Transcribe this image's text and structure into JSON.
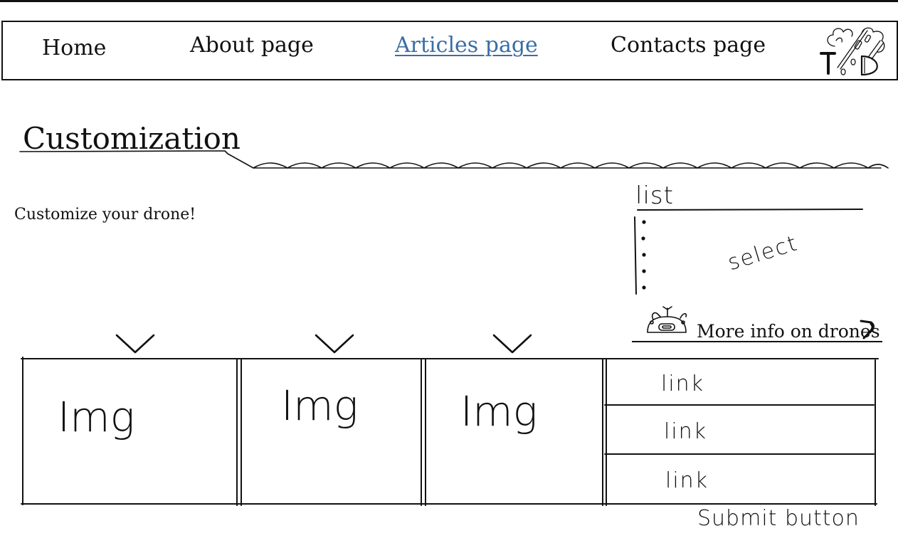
{
  "nav": {
    "items": [
      {
        "label": "Home"
      },
      {
        "label": "About page"
      },
      {
        "label": "Articles page",
        "active": true
      },
      {
        "label": "Contacts page"
      }
    ],
    "active_color": "#3a6ea5",
    "logo_text": "T/D"
  },
  "heading": {
    "title": "Customization"
  },
  "intro": "Customize your drone!",
  "list_panel": {
    "label": "list",
    "select_label": "select"
  },
  "more_info": {
    "label": "More info on drones",
    "icon": "drone-icon"
  },
  "gallery": {
    "images": [
      {
        "label": "Img",
        "icon": "chevron-down-icon"
      },
      {
        "label": "Img",
        "icon": "chevron-down-icon"
      },
      {
        "label": "Img",
        "icon": "chevron-down-icon"
      }
    ],
    "links": [
      "link",
      "link",
      "link"
    ]
  },
  "submit": {
    "label": "Submit button"
  }
}
